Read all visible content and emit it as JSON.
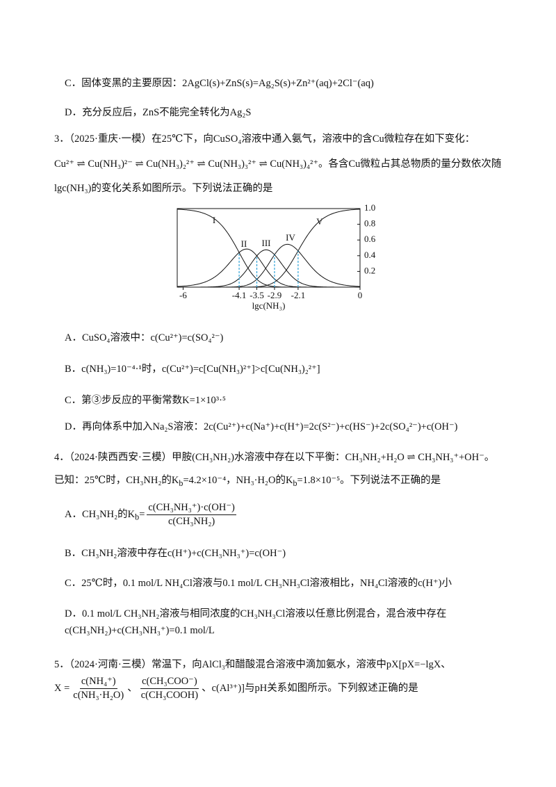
{
  "prev": {
    "C": "C．固体变黑的主要原因：2AgCl(s)+ZnS(s)=Ag₂S(s)+Zn²⁺(aq)+2Cl⁻(aq)",
    "D": "D．充分反应后，ZnS不能完全转化为Ag₂S"
  },
  "q3": {
    "stem": [
      "3．（2025·重庆·一模）在25℃下，向CuSO₄溶液中通入氨气，溶液中的含Cu微粒存在如下变化：",
      "Cu²⁺ ⇌ Cu(NH₃)²⁻ ⇌ Cu(NH₃)₂²⁺ ⇌ Cu(NH₃)₃²⁺ ⇌ Cu(NH₃)₄²⁺。各含Cu微粒占其总物质的量分数依次随",
      "lgc(NH₃)的变化关系如图所示。下列说法正确的是"
    ],
    "figure": {
      "xlim": [
        -6.2,
        0
      ],
      "ylim": [
        0,
        1
      ],
      "xticks": [
        -6,
        -4.1,
        -3.5,
        -2.9,
        -2.1,
        0
      ],
      "yticks": [
        0.2,
        0.4,
        0.6,
        0.8,
        {
          "value": 1,
          "label": "1.0"
        }
      ],
      "xlabel": "lgc(NH₃)",
      "curve_labels": [
        "I",
        "II",
        "III",
        "IV",
        "V"
      ]
    },
    "options": [
      "A．CuSO₄溶液中：c(Cu²⁺)=c(SO₄²⁻)",
      "B．c(NH₃)=10⁻⁴·¹时，c(Cu²⁺)=c[Cu(NH₃)²⁺]>c[Cu(NH₃)₂²⁺]",
      "C．第③步反应的平衡常数K=1×10³·⁵",
      "D．再向体系中加入Na₂S溶液：2c(Cu²⁺)+c(Na⁺)+c(H⁺)=2c(S²⁻)+c(HS⁻)+2c(SO₄²⁻)+c(OH⁻)"
    ]
  },
  "q4": {
    "stem": [
      "4．（2024·陕西西安·三模）甲胺(CH₃NH₂)水溶液中存在以下平衡：CH₃NH₂+H₂O ⇌ CH₃NH₃⁺+OH⁻。",
      [
        "已知：25℃时，CH₃NH₂的K",
        "b",
        "=4.2×10⁻⁴，NH₃·H₂O的K",
        "b",
        "=1.8×10⁻⁵。下列说法不正确的是"
      ]
    ],
    "A": {
      "prefix": "A．CH₃NH₂的K",
      "sub": "b",
      "eq": "=",
      "num": "c(CH₃NH₃⁺)·c(OH⁻)",
      "den": "c(CH₃NH₂)"
    },
    "B": "B．CH₃NH₂溶液中存在c(H⁺)+c(CH₃NH₃⁺)=c(OH⁻)",
    "C": "C．25℃时，0.1 mol/L NH₄Cl溶液与0.1 mol/L CH₃NH₃Cl溶液相比，NH₄Cl溶液的c(H⁺)小",
    "D": [
      "D．0.1 mol/L CH₃NH₂溶液与相同浓度的CH₃NH₃Cl溶液以任意比例混合，混合液中存在",
      "c(CH₃NH₂)+c(CH₃NH₃⁺)=0.1 mol/L"
    ]
  },
  "q5": {
    "stem": "5．（2024·河南·三模）常温下，向AlCl₃和醋酸混合溶液中滴加氨水，溶液中pX[pX=−lgX、",
    "x": "X =",
    "f1n": "c(NH₄⁺)",
    "f1d": "c(NH₃·H₂O)",
    "sep": "、",
    "f2n": "c(CH₃COO⁻)",
    "f2d": "c(CH₃COOH)",
    "rest": "、c(Al³⁺)]与pH关系如图所示。下列叙述正确的是"
  }
}
